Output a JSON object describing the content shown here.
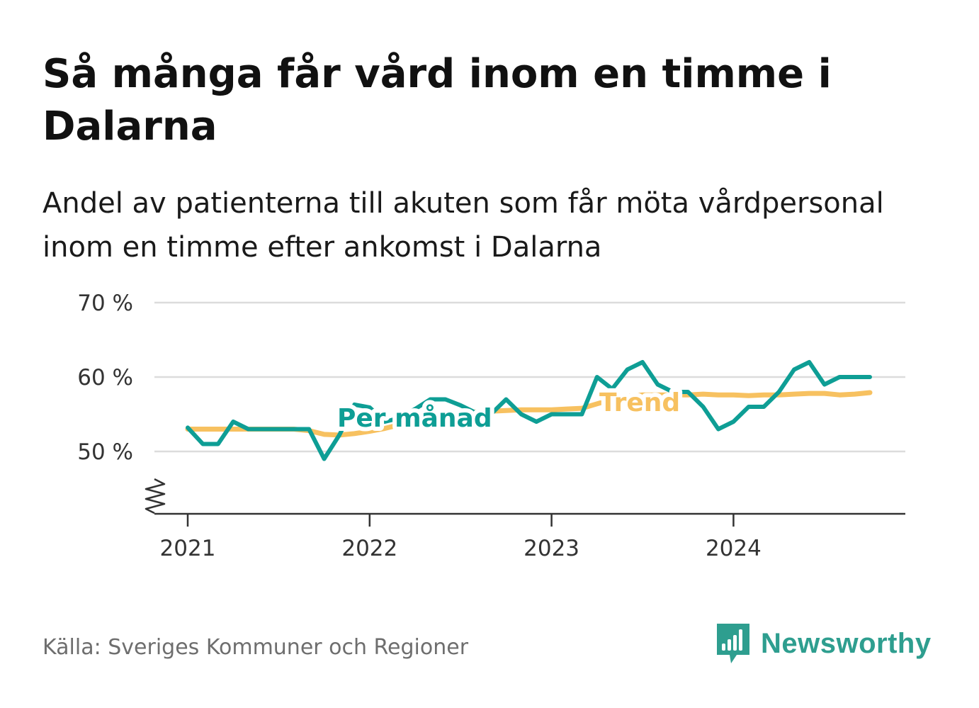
{
  "title": "Så många får vård inom en timme i Dalarna",
  "subtitle": "Andel av patienterna till akuten som får möta vårdpersonal inom en timme efter ankomst i Dalarna",
  "source": "Källa: Sveriges Kommuner och Regioner",
  "brand": "Newsworthy",
  "colors": {
    "monthly": "#0e9e95",
    "trend": "#f7c160",
    "grid": "#dcdcdc",
    "axis": "#333333",
    "brand": "#2e9e8f"
  },
  "chart_data": {
    "type": "line",
    "x_start": "2021-01",
    "x_ticks": [
      "2021",
      "2022",
      "2023",
      "2024"
    ],
    "y_ticks": [
      "50 %",
      "60 %",
      "70 %"
    ],
    "y_tick_values": [
      50,
      60,
      70
    ],
    "ylim": [
      42,
      70
    ],
    "grid": true,
    "axis_break": true,
    "series": [
      {
        "name": "Per månad",
        "values": [
          53.2,
          51,
          51,
          54,
          53,
          53,
          53,
          53,
          53,
          49,
          52.2,
          56.3,
          55.9,
          54,
          54.5,
          55.7,
          57,
          57,
          56.2,
          55.2,
          55,
          57,
          55,
          54,
          55,
          55,
          55,
          60,
          58.4,
          61,
          62,
          59,
          58,
          58,
          56,
          53,
          54,
          56,
          56,
          58,
          61,
          62,
          59,
          60,
          60,
          60
        ]
      },
      {
        "name": "Trend",
        "values": [
          53,
          53,
          53,
          53,
          53,
          53,
          53,
          53,
          52.8,
          52.3,
          52.2,
          52.4,
          52.7,
          53.1,
          53.6,
          54.1,
          54.5,
          54.9,
          55.1,
          55.3,
          55.4,
          55.5,
          55.6,
          55.6,
          55.6,
          55.7,
          55.8,
          56.4,
          57,
          57.4,
          57.6,
          57.6,
          57.6,
          57.6,
          57.7,
          57.6,
          57.6,
          57.5,
          57.6,
          57.6,
          57.7,
          57.8,
          57.8,
          57.6,
          57.7,
          57.9
        ]
      }
    ]
  }
}
